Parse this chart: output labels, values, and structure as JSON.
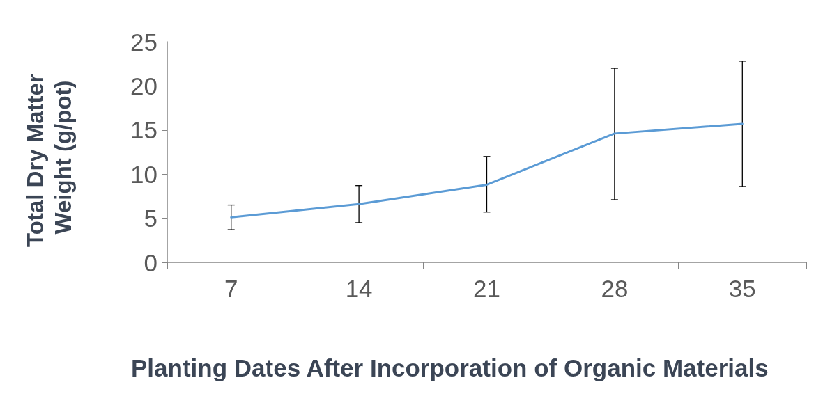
{
  "chart_data": {
    "type": "line",
    "xlabel": "Planting Dates After Incorporation of Organic Materials",
    "ylabel": "Total Dry Matter Weight (g/pot)",
    "categories": [
      "7",
      "14",
      "21",
      "28",
      "35"
    ],
    "values": [
      5.1,
      6.6,
      8.8,
      14.6,
      15.7
    ],
    "errors": [
      [
        3.7,
        6.5
      ],
      [
        4.5,
        8.7
      ],
      [
        5.7,
        12.0
      ],
      [
        7.1,
        22.0
      ],
      [
        8.6,
        22.8
      ]
    ],
    "color": "#5b9bd5",
    "ylim": [
      0,
      25
    ],
    "yticks": [
      0,
      5,
      10,
      15,
      20,
      25
    ],
    "grid": false,
    "marker": "none",
    "line_style": "solid"
  }
}
